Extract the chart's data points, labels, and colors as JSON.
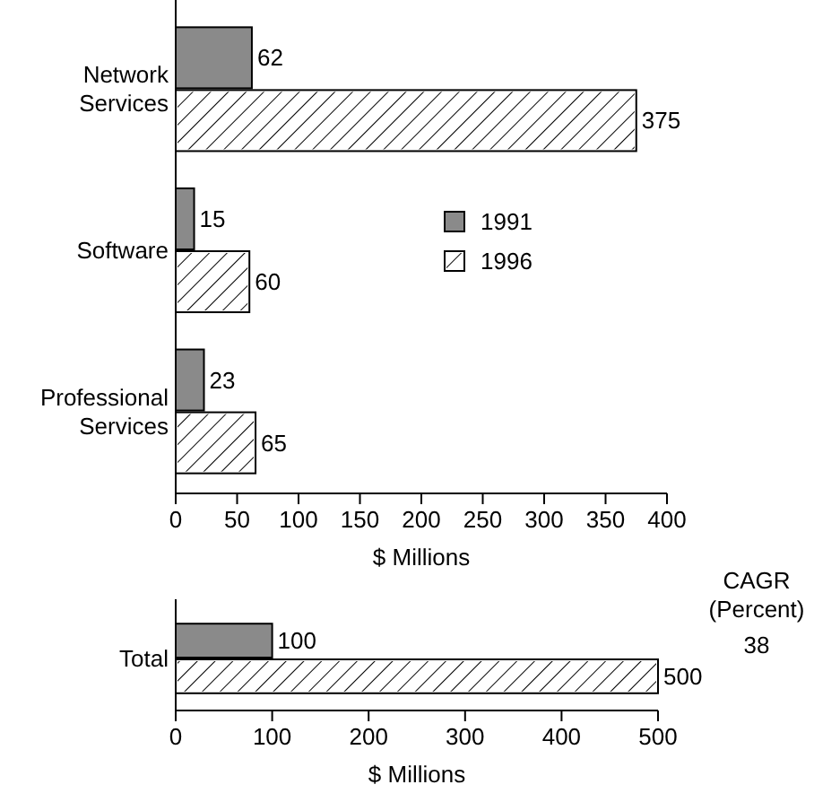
{
  "chart_data": [
    {
      "type": "bar",
      "orientation": "horizontal",
      "categories": [
        "Network Services",
        "Software",
        "Professional Services"
      ],
      "series": [
        {
          "name": "1991",
          "color": "#8a8a8a",
          "values": [
            62,
            15,
            23
          ]
        },
        {
          "name": "1996",
          "color": "#ffffff",
          "values": [
            375,
            60,
            65
          ]
        }
      ],
      "xlim": [
        0,
        400
      ],
      "xticks": [
        0,
        50,
        100,
        150,
        200,
        250,
        300,
        350,
        400
      ],
      "xlabel": "$ Millions",
      "data_labels": true,
      "legend": "right",
      "grid": false
    },
    {
      "type": "bar",
      "orientation": "horizontal",
      "categories": [
        "Total"
      ],
      "series": [
        {
          "color": "#8a8a8a",
          "values": [
            100
          ]
        },
        {
          "color": "#ffffff",
          "values": [
            500
          ]
        }
      ],
      "xlim": [
        0,
        500
      ],
      "xticks": [
        0,
        100,
        200,
        300,
        400,
        500
      ],
      "xlabel": "$ Millions",
      "data_labels": true,
      "legend": false,
      "grid": false,
      "annotations": [
        "CAGR (Percent)",
        "38"
      ]
    }
  ]
}
